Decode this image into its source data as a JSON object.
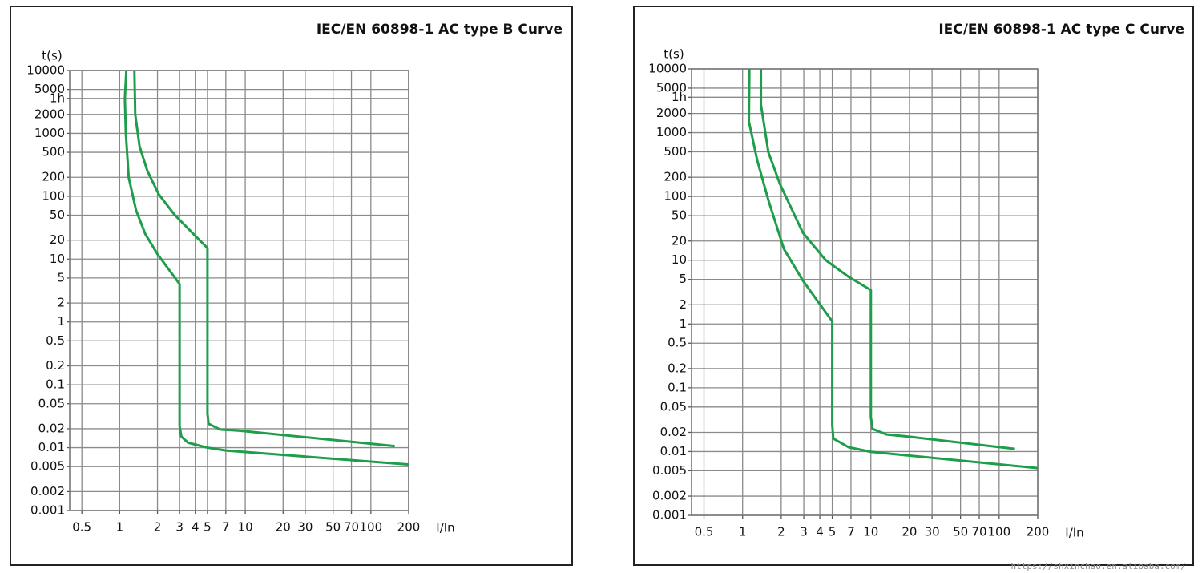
{
  "chart_data": [
    {
      "type": "line",
      "title": "IEC/EN 60898-1 AC type B Curve",
      "xlabel": "I/In",
      "ylabel": "t(s)",
      "xscale": "log",
      "yscale": "log",
      "grid": true,
      "xlim": [
        0.4,
        200
      ],
      "ylim": [
        0.001,
        10000
      ],
      "xticks": [
        0.5,
        1,
        2,
        3,
        4,
        5,
        7,
        10,
        20,
        30,
        50,
        70,
        100,
        200
      ],
      "yticks": [
        10000,
        5000,
        {
          "value": 3600,
          "label": "1h"
        },
        2000,
        1000,
        500,
        200,
        100,
        50,
        20,
        10,
        5,
        2,
        1,
        0.5,
        0.2,
        0.1,
        0.05,
        0.02,
        0.01,
        0.005,
        0.002,
        0.001
      ],
      "series": [
        {
          "color": "#1e9e4a",
          "x": [
            1.13,
            1.1,
            1.12,
            1.18,
            1.35,
            1.6,
            2,
            3,
            3,
            3.1,
            3.5,
            5,
            7,
            200
          ],
          "values": [
            10000,
            3600,
            1000,
            200,
            60,
            25,
            12,
            4,
            0.022,
            0.015,
            0.012,
            0.01,
            0.009,
            0.0054
          ]
        },
        {
          "color": "#1e9e4a",
          "x": [
            1.31,
            1.33,
            1.44,
            1.66,
            2.05,
            2.73,
            3.87,
            5,
            5,
            5.1,
            6.3,
            9,
            155
          ],
          "values": [
            10000,
            2000,
            620,
            255,
            107,
            51,
            25,
            15,
            0.035,
            0.024,
            0.0195,
            0.0186,
            0.0106
          ]
        }
      ]
    },
    {
      "type": "line",
      "title": "IEC/EN 60898-1 AC type C Curve",
      "xlabel": "I/In",
      "ylabel": "t(s)",
      "xscale": "log",
      "yscale": "log",
      "grid": true,
      "xlim": [
        0.4,
        200
      ],
      "ylim": [
        0.001,
        10000
      ],
      "xticks": [
        0.5,
        1,
        2,
        3,
        4,
        5,
        7,
        10,
        20,
        30,
        50,
        70,
        100,
        200
      ],
      "yticks": [
        10000,
        5000,
        {
          "value": 3600,
          "label": "1h"
        },
        2000,
        1000,
        500,
        200,
        100,
        50,
        20,
        10,
        5,
        2,
        1,
        0.5,
        0.2,
        0.1,
        0.05,
        0.02,
        0.01,
        0.005,
        0.002,
        0.001
      ],
      "series": [
        {
          "color": "#1e9e4a",
          "x": [
            1.13,
            1.12,
            1.3,
            1.59,
            2.1,
            2.95,
            5,
            5,
            5.1,
            6.7,
            10,
            200
          ],
          "values": [
            10000,
            1500,
            370,
            87,
            15,
            4.8,
            1.1,
            0.026,
            0.016,
            0.0117,
            0.0099,
            0.0055
          ]
        },
        {
          "color": "#1e9e4a",
          "x": [
            1.39,
            1.39,
            1.59,
            1.96,
            2.95,
            4.45,
            6.7,
            10,
            10,
            10.3,
            13.3,
            20,
            133
          ],
          "values": [
            10000,
            2750,
            490,
            155,
            27,
            10,
            5.5,
            3.4,
            0.035,
            0.0227,
            0.0185,
            0.0171,
            0.011
          ]
        }
      ]
    }
  ],
  "watermark": "https://shxinchao.en.alibaba.com/"
}
